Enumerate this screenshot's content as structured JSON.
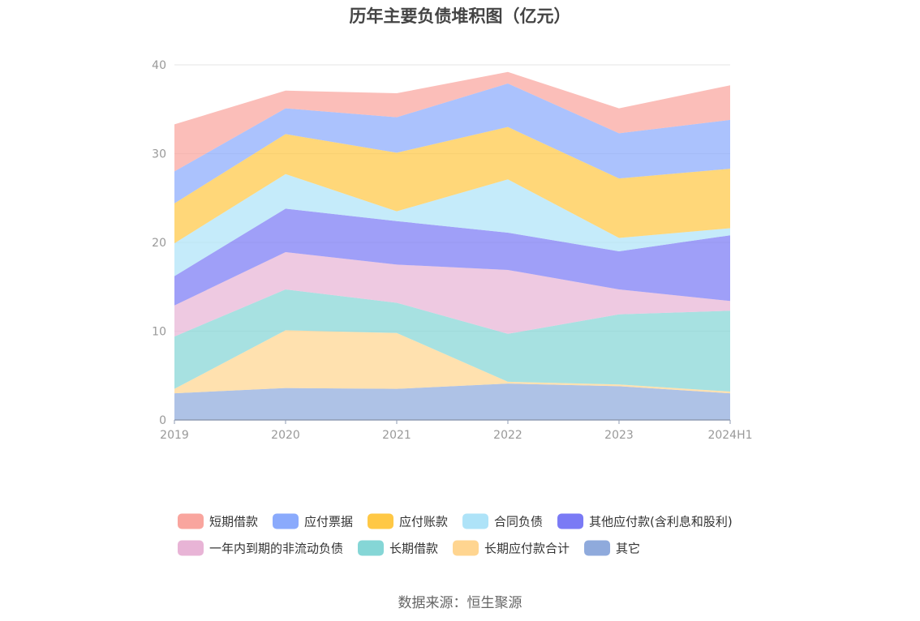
{
  "title": "历年主要负债堆积图（亿元）",
  "source": "数据来源：恒生聚源",
  "chart_data": {
    "type": "area",
    "stacked": true,
    "title": "历年主要负债堆积图（亿元）",
    "categories": [
      "2019",
      "2020",
      "2021",
      "2022",
      "2023",
      "2024H1"
    ],
    "y_ticks": [
      "0",
      "10",
      "20",
      "30",
      "40"
    ],
    "ylim": [
      0,
      40
    ],
    "grid": "horizontal",
    "legend_position": "bottom",
    "series": [
      {
        "name": "其它",
        "color": "#8faadc",
        "values": [
          3.0,
          3.6,
          3.5,
          4.1,
          3.8,
          3.0
        ]
      },
      {
        "name": "长期应付款合计",
        "color": "#ffd590",
        "values": [
          0.5,
          6.5,
          6.3,
          0.2,
          0.2,
          0.2
        ]
      },
      {
        "name": "长期借款",
        "color": "#85d6d6",
        "values": [
          5.9,
          4.6,
          3.4,
          5.4,
          7.9,
          9.1
        ]
      },
      {
        "name": "一年内到期的非流动负债",
        "color": "#e8b4d6",
        "values": [
          3.5,
          4.2,
          4.3,
          7.2,
          2.8,
          1.1
        ]
      },
      {
        "name": "其他应付款(含利息和股利)",
        "color": "#7a7af5",
        "values": [
          3.3,
          4.9,
          4.9,
          4.2,
          4.3,
          7.4
        ]
      },
      {
        "name": "合同负债",
        "color": "#aee3f8",
        "values": [
          3.7,
          3.9,
          1.1,
          6.0,
          1.5,
          0.8
        ]
      },
      {
        "name": "应付账款",
        "color": "#ffc845",
        "values": [
          4.5,
          4.5,
          6.6,
          5.9,
          6.7,
          6.7
        ]
      },
      {
        "name": "应付票据",
        "color": "#8aaafc",
        "values": [
          3.6,
          2.9,
          4.0,
          4.9,
          5.1,
          5.5
        ]
      },
      {
        "name": "短期借款",
        "color": "#f9a59e",
        "values": [
          5.3,
          2.0,
          2.7,
          1.3,
          2.8,
          3.9
        ]
      }
    ],
    "legend_order": [
      "短期借款",
      "应付票据",
      "应付账款",
      "合同负债",
      "其他应付款(含利息和股利)",
      "一年内到期的非流动负债",
      "长期借款",
      "长期应付款合计",
      "其它"
    ]
  }
}
